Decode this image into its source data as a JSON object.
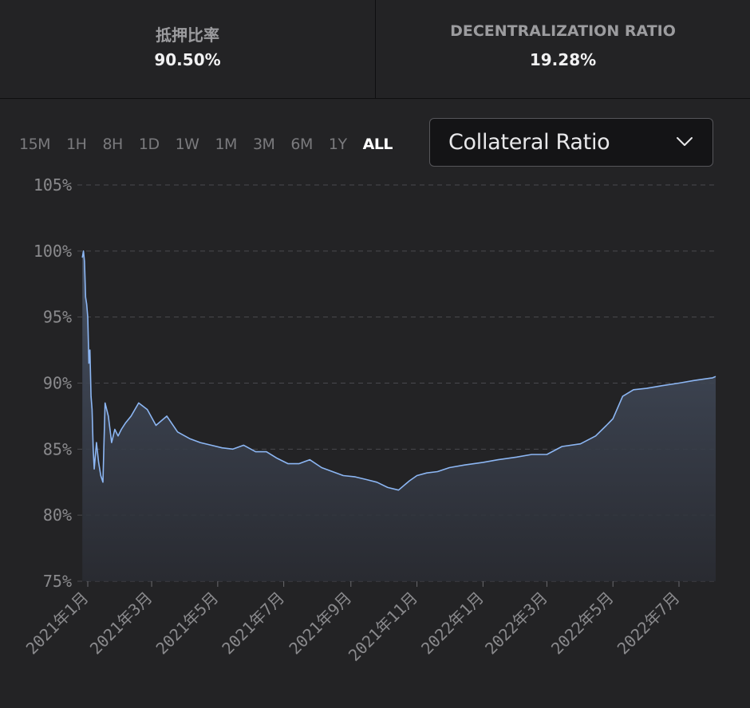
{
  "stats": [
    {
      "label": "抵押比率",
      "value": "90.50%"
    },
    {
      "label": "DECENTRALIZATION RATIO",
      "value": "19.28%"
    }
  ],
  "time_ranges": [
    "15M",
    "1H",
    "8H",
    "1D",
    "1W",
    "1M",
    "3M",
    "6M",
    "1Y",
    "ALL"
  ],
  "active_range": "ALL",
  "metric_select": {
    "selected": "Collateral Ratio"
  },
  "colors": {
    "line": "#8cb6f3",
    "fill_top": "#4a5568",
    "grid": "#4a4a4e",
    "tick": "#8a8a8d"
  },
  "chart_data": {
    "type": "area",
    "title": "",
    "xlabel": "",
    "ylabel": "",
    "ylim": [
      75,
      105
    ],
    "y_ticks": [
      "75%",
      "80%",
      "85%",
      "90%",
      "95%",
      "100%",
      "105%"
    ],
    "y_tick_values": [
      75,
      80,
      85,
      90,
      95,
      100,
      105
    ],
    "x_ticks": [
      "2021年1月",
      "2021年3月",
      "2021年5月",
      "2021年7月",
      "2021年9月",
      "2021年11月",
      "2022年1月",
      "2022年3月",
      "2022年5月",
      "2022年7月"
    ],
    "x_tick_dates": [
      "2021-01-01",
      "2021-03-01",
      "2021-05-01",
      "2021-07-01",
      "2021-09-01",
      "2021-11-01",
      "2022-01-01",
      "2022-03-01",
      "2022-05-01",
      "2022-07-01"
    ],
    "grid": true,
    "series": [
      {
        "x": [
          "2020-12-27",
          "2020-12-28",
          "2020-12-29",
          "2020-12-30",
          "2020-12-31",
          "2021-01-01",
          "2021-01-02",
          "2021-01-03",
          "2021-01-04",
          "2021-01-05",
          "2021-01-06",
          "2021-01-07",
          "2021-01-09",
          "2021-01-11",
          "2021-01-13",
          "2021-01-15",
          "2021-01-17",
          "2021-01-20",
          "2021-01-23",
          "2021-01-26",
          "2021-01-29",
          "2021-02-01",
          "2021-02-05",
          "2021-02-10",
          "2021-02-17",
          "2021-02-25",
          "2021-03-05",
          "2021-03-15",
          "2021-03-25",
          "2021-04-05",
          "2021-04-15",
          "2021-04-25",
          "2021-05-05",
          "2021-05-15",
          "2021-05-25",
          "2021-06-05",
          "2021-06-15",
          "2021-06-25",
          "2021-07-05",
          "2021-07-15",
          "2021-07-25",
          "2021-08-05",
          "2021-08-15",
          "2021-08-25",
          "2021-09-05",
          "2021-09-15",
          "2021-09-25",
          "2021-10-05",
          "2021-10-15",
          "2021-10-25",
          "2021-11-01",
          "2021-11-10",
          "2021-11-20",
          "2021-12-01",
          "2021-12-15",
          "2022-01-01",
          "2022-01-15",
          "2022-02-01",
          "2022-02-15",
          "2022-03-01",
          "2022-03-15",
          "2022-04-01",
          "2022-04-15",
          "2022-04-25",
          "2022-05-01",
          "2022-05-10",
          "2022-05-20",
          "2022-06-01",
          "2022-06-15",
          "2022-07-01",
          "2022-07-15",
          "2022-08-01",
          "2022-08-10"
        ],
        "values": [
          99.5,
          100.0,
          99.2,
          96.5,
          96.0,
          95.0,
          91.5,
          92.5,
          89.0,
          88.0,
          85.0,
          83.5,
          85.5,
          84.0,
          83.0,
          82.5,
          88.5,
          87.5,
          85.5,
          86.5,
          86.0,
          86.5,
          87.0,
          87.5,
          88.5,
          88.0,
          86.8,
          87.5,
          86.3,
          85.8,
          85.5,
          85.3,
          85.1,
          85.0,
          85.3,
          84.8,
          84.8,
          84.3,
          83.9,
          83.9,
          84.2,
          83.6,
          83.3,
          83.0,
          82.9,
          82.7,
          82.5,
          82.1,
          81.9,
          82.6,
          83.0,
          83.2,
          83.3,
          83.6,
          83.8,
          84.0,
          84.2,
          84.4,
          84.6,
          84.6,
          85.2,
          85.4,
          86.0,
          86.8,
          87.3,
          89.0,
          89.5,
          89.6,
          89.8,
          90.0,
          90.2,
          90.4,
          90.5
        ]
      }
    ]
  }
}
